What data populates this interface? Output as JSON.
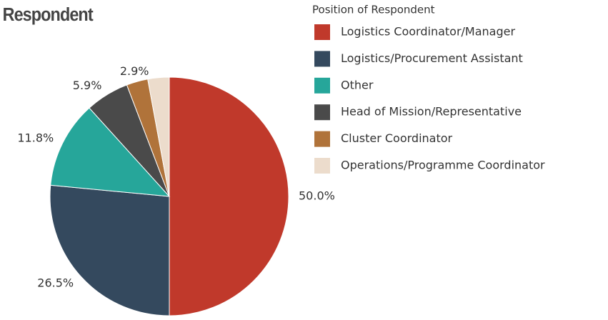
{
  "chart_data": {
    "type": "pie",
    "title": "Respondent",
    "legend_title": "Position of Respondent",
    "categories": [
      "Logistics Coordinator/Manager",
      "Logistics/Procurement Assistant",
      "Other",
      "Head of Mission/Representative",
      "Cluster Coordinator",
      "Operations/Programme Coordinator"
    ],
    "values": [
      50.0,
      26.5,
      11.8,
      5.9,
      2.9,
      2.9
    ],
    "value_labels": [
      "50.0%",
      "26.5%",
      "11.8%",
      "5.9%",
      "2.9%",
      null
    ],
    "colors": [
      "#c0392b",
      "#34495e",
      "#26a69a",
      "#4a4a4a",
      "#b0733a",
      "#ecdccc"
    ],
    "legend": "right"
  }
}
